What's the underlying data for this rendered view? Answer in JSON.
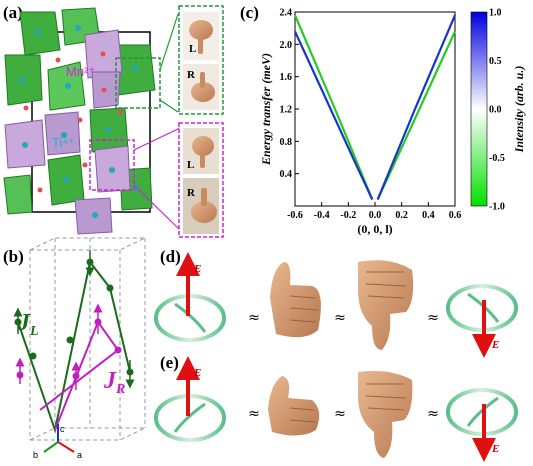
{
  "panels": {
    "a": {
      "label": "(a)",
      "ion_mn": "Mn²⁺",
      "ion_ti": "Ti⁴⁺",
      "hand_top_l": "L",
      "hand_top_r": "R",
      "hand_bot_l": "L",
      "hand_bot_r": "R"
    },
    "b": {
      "label": "(b)",
      "j_left": "J",
      "j_left_sub": "L",
      "j_right": "J",
      "j_right_sub": "R",
      "axis_c": "c",
      "axis_a": "a",
      "axis_b": "b"
    },
    "c": {
      "label": "(c)"
    },
    "d": {
      "label": "(d)",
      "approx": "≈",
      "evec": "E"
    },
    "e": {
      "label": "(e)",
      "approx": "≈",
      "evec": "E"
    }
  },
  "colors": {
    "green": "#2aa52a",
    "blue": "#1530c8",
    "red": "#e01010",
    "purple": "#b060c8",
    "magenta": "#e020e0"
  },
  "chart_data": {
    "type": "line",
    "xlabel": "(0, 0, l)",
    "ylabel": "Energy transfer (meV)",
    "colorbar_label": "Intensity (arb. u.)",
    "xlim": [
      -0.6,
      0.6
    ],
    "ylim": [
      0,
      2.4
    ],
    "xticks": [
      "-0.6",
      "-0.4",
      "-0.2",
      "0.0",
      "0.2",
      "0.4",
      "0.6"
    ],
    "yticks": [
      "0.4",
      "0.8",
      "1.2",
      "1.6",
      "2.0",
      "2.4"
    ],
    "colorbar_ticks": [
      "1.0",
      "0.5",
      "0.0",
      "-0.5",
      "-1.0"
    ],
    "colorbar_range": [
      -1.0,
      1.0
    ],
    "colorbar_colors": [
      "#00e000",
      "#ffffff",
      "#0000e0"
    ],
    "series": [
      {
        "x": [
          -0.6,
          -0.45,
          -0.3,
          -0.15,
          -0.02
        ],
        "y": [
          2.36,
          1.78,
          1.2,
          0.6,
          0.08
        ],
        "color": "#22cc22"
      },
      {
        "x": [
          -0.6,
          -0.45,
          -0.3,
          -0.15,
          -0.02
        ],
        "y": [
          2.16,
          1.62,
          1.08,
          0.54,
          0.08
        ],
        "color": "#1a33cc"
      },
      {
        "x": [
          0.02,
          0.15,
          0.3,
          0.45,
          0.6
        ],
        "y": [
          0.08,
          0.54,
          1.08,
          1.62,
          2.16
        ],
        "color": "#22cc22"
      },
      {
        "x": [
          0.02,
          0.15,
          0.3,
          0.45,
          0.6
        ],
        "y": [
          0.08,
          0.6,
          1.2,
          1.78,
          2.36
        ],
        "color": "#1a33cc"
      }
    ]
  }
}
